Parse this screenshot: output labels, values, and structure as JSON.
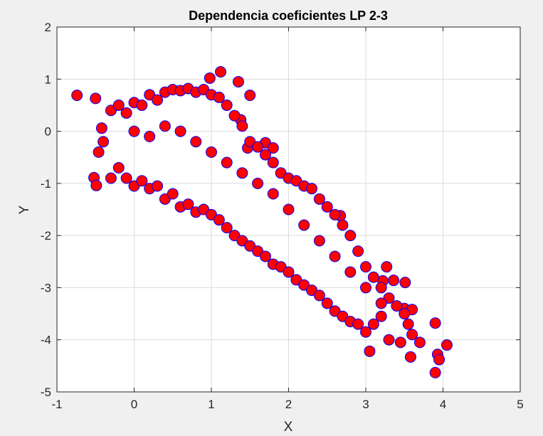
{
  "chart_data": {
    "type": "scatter",
    "title": "Dependencia coeficientes LP 2-3",
    "xlabel": "X",
    "ylabel": "Y",
    "xlim": [
      -1,
      5
    ],
    "ylim": [
      -5,
      2
    ],
    "xticks": [
      "-1",
      "0",
      "1",
      "2",
      "3",
      "4",
      "5"
    ],
    "yticks": [
      "-5",
      "-4",
      "-3",
      "-2",
      "-1",
      "0",
      "1",
      "2"
    ],
    "grid": true,
    "marker": {
      "face_color": "#ff0000",
      "edge_color": "#0000ff",
      "shape": "circle"
    },
    "series": [
      {
        "points": [
          [
            -0.74,
            0.69
          ],
          [
            -0.5,
            0.63
          ],
          [
            1.12,
            1.14
          ],
          [
            0.98,
            1.02
          ],
          [
            1.35,
            0.95
          ],
          [
            1.5,
            0.69
          ],
          [
            1.38,
            0.22
          ],
          [
            -0.52,
            -0.89
          ],
          [
            -0.49,
            -1.04
          ],
          [
            -0.46,
            -0.4
          ],
          [
            -0.42,
            0.06
          ],
          [
            1.47,
            -0.32
          ],
          [
            1.7,
            -0.22
          ],
          [
            1.8,
            -0.32
          ],
          [
            2.67,
            -1.62
          ],
          [
            3.27,
            -2.6
          ],
          [
            3.22,
            -2.87
          ],
          [
            3.36,
            -2.86
          ],
          [
            3.51,
            -2.9
          ],
          [
            3.9,
            -3.68
          ],
          [
            3.5,
            -3.4
          ],
          [
            3.6,
            -3.42
          ],
          [
            3.93,
            -4.28
          ],
          [
            3.95,
            -4.38
          ],
          [
            4.05,
            -4.1
          ],
          [
            3.9,
            -4.63
          ],
          [
            3.05,
            -4.22
          ],
          [
            3.58,
            -4.33
          ],
          [
            3.7,
            -4.05
          ],
          [
            3.45,
            -4.05
          ],
          [
            3.3,
            -4.0
          ],
          [
            3.6,
            -3.9
          ],
          [
            -0.4,
            -0.2
          ],
          [
            -0.3,
            -0.9
          ],
          [
            -0.2,
            -0.7
          ],
          [
            -0.1,
            -0.9
          ],
          [
            0.0,
            -1.05
          ],
          [
            0.1,
            -0.95
          ],
          [
            0.2,
            -1.1
          ],
          [
            0.3,
            -1.05
          ],
          [
            0.4,
            -1.3
          ],
          [
            0.5,
            -1.2
          ],
          [
            0.6,
            -1.45
          ],
          [
            0.7,
            -1.4
          ],
          [
            0.8,
            -1.55
          ],
          [
            0.9,
            -1.5
          ],
          [
            1.0,
            -1.6
          ],
          [
            1.1,
            -1.7
          ],
          [
            1.2,
            -1.85
          ],
          [
            1.3,
            -2.0
          ],
          [
            1.4,
            -2.1
          ],
          [
            1.5,
            -2.2
          ],
          [
            1.6,
            -2.3
          ],
          [
            1.7,
            -2.4
          ],
          [
            1.8,
            -2.55
          ],
          [
            1.9,
            -2.6
          ],
          [
            2.0,
            -2.7
          ],
          [
            2.1,
            -2.85
          ],
          [
            2.2,
            -2.95
          ],
          [
            2.3,
            -3.05
          ],
          [
            2.4,
            -3.15
          ],
          [
            2.5,
            -3.3
          ],
          [
            2.6,
            -3.45
          ],
          [
            2.7,
            -3.55
          ],
          [
            2.8,
            -3.65
          ],
          [
            2.9,
            -3.7
          ],
          [
            3.0,
            -3.85
          ],
          [
            3.1,
            -3.7
          ],
          [
            3.2,
            -3.55
          ],
          [
            -0.3,
            0.4
          ],
          [
            -0.2,
            0.5
          ],
          [
            -0.1,
            0.35
          ],
          [
            0.0,
            0.55
          ],
          [
            0.1,
            0.5
          ],
          [
            0.2,
            0.7
          ],
          [
            0.3,
            0.6
          ],
          [
            0.4,
            0.75
          ],
          [
            0.5,
            0.8
          ],
          [
            0.6,
            0.78
          ],
          [
            0.7,
            0.82
          ],
          [
            0.8,
            0.75
          ],
          [
            0.9,
            0.8
          ],
          [
            1.0,
            0.7
          ],
          [
            1.1,
            0.65
          ],
          [
            1.2,
            0.5
          ],
          [
            1.3,
            0.3
          ],
          [
            1.4,
            0.1
          ],
          [
            1.5,
            -0.2
          ],
          [
            1.6,
            -0.3
          ],
          [
            1.7,
            -0.45
          ],
          [
            1.8,
            -0.6
          ],
          [
            1.9,
            -0.8
          ],
          [
            2.0,
            -0.9
          ],
          [
            2.1,
            -0.95
          ],
          [
            2.2,
            -1.05
          ],
          [
            2.3,
            -1.1
          ],
          [
            2.4,
            -1.3
          ],
          [
            2.5,
            -1.45
          ],
          [
            2.6,
            -1.6
          ],
          [
            2.7,
            -1.8
          ],
          [
            2.8,
            -2.0
          ],
          [
            2.9,
            -2.3
          ],
          [
            3.0,
            -2.6
          ],
          [
            3.1,
            -2.8
          ],
          [
            3.2,
            -3.0
          ],
          [
            3.3,
            -3.2
          ],
          [
            3.4,
            -3.35
          ],
          [
            3.5,
            -3.5
          ],
          [
            3.55,
            -3.7
          ],
          [
            0.0,
            0.0
          ],
          [
            0.2,
            -0.1
          ],
          [
            0.4,
            0.1
          ],
          [
            0.6,
            0.0
          ],
          [
            0.8,
            -0.2
          ],
          [
            1.0,
            -0.4
          ],
          [
            1.2,
            -0.6
          ],
          [
            1.4,
            -0.8
          ],
          [
            1.6,
            -1.0
          ],
          [
            1.8,
            -1.2
          ],
          [
            2.0,
            -1.5
          ],
          [
            2.2,
            -1.8
          ],
          [
            2.4,
            -2.1
          ],
          [
            2.6,
            -2.4
          ],
          [
            2.8,
            -2.7
          ],
          [
            3.0,
            -3.0
          ],
          [
            3.2,
            -3.3
          ]
        ]
      }
    ]
  }
}
